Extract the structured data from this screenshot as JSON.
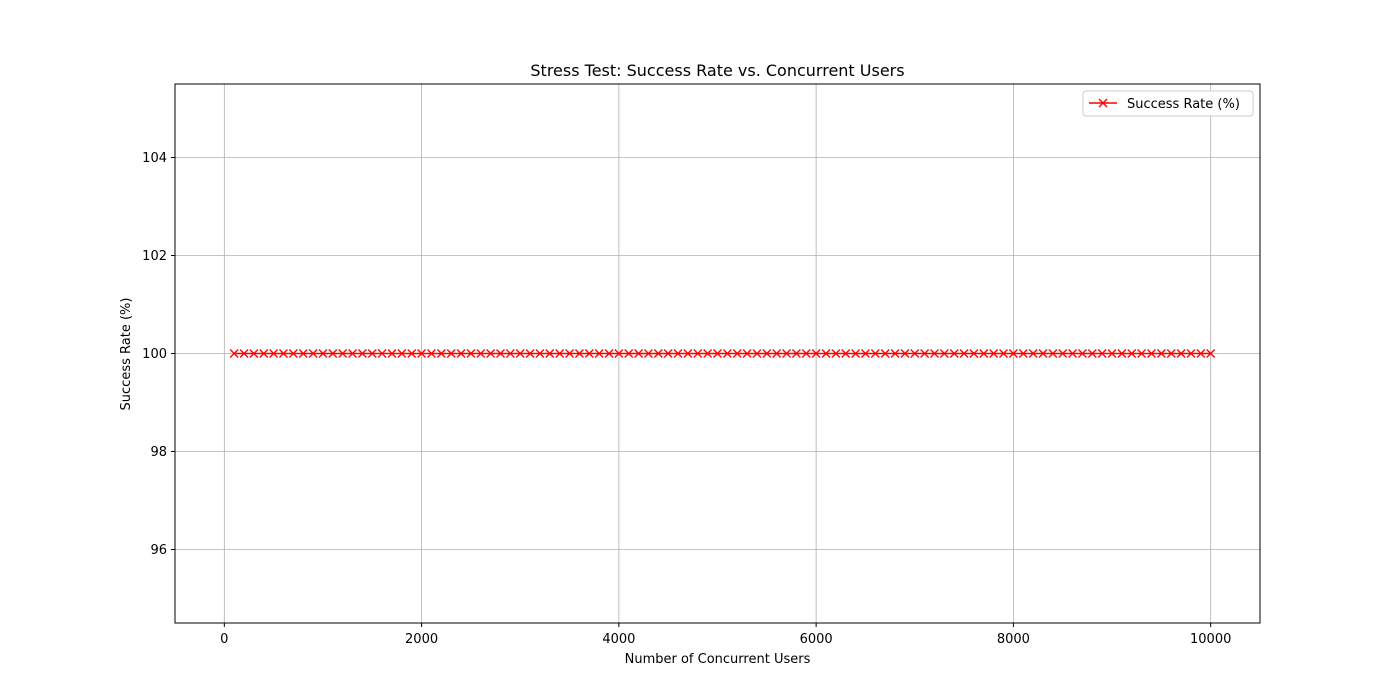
{
  "chart_data": {
    "type": "line",
    "title": "Stress Test: Success Rate vs. Concurrent Users",
    "xlabel": "Number of Concurrent Users",
    "ylabel": "Success Rate (%)",
    "xlim": [
      -500,
      10500
    ],
    "ylim": [
      94.5,
      105.5
    ],
    "xticks": [
      0,
      2000,
      4000,
      6000,
      8000,
      10000
    ],
    "yticks": [
      96,
      98,
      100,
      102,
      104
    ],
    "grid": true,
    "legend_position": "top-right",
    "series": [
      {
        "name": "Success Rate (%)",
        "color": "#ff0000",
        "marker": "x",
        "x_start": 100,
        "x_end": 10000,
        "x_step": 100,
        "y_constant": 100
      }
    ]
  }
}
